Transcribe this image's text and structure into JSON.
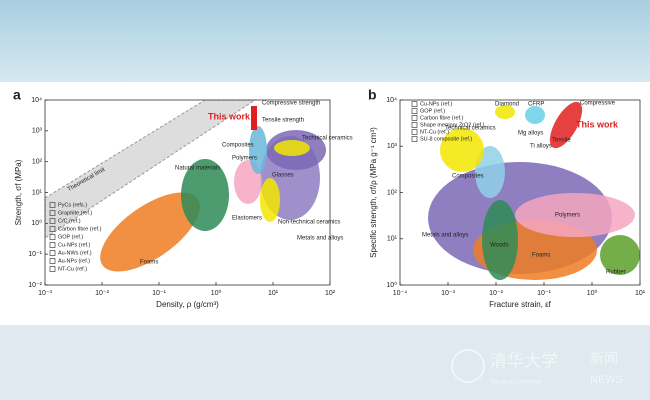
{
  "chart_data": [
    {
      "type": "scatter",
      "panel": "a",
      "xscale": "log",
      "yscale": "log",
      "xlabel": "Density, ρ (g/cm³)",
      "ylabel": "Strength, σf (MPa)",
      "xlim": [
        0.001,
        100
      ],
      "ylim": [
        0.01,
        10000
      ],
      "xticks": [
        {
          "value": 0.001,
          "label": "10⁻³"
        },
        {
          "value": 0.01,
          "label": "10⁻²"
        },
        {
          "value": 0.1,
          "label": "10⁻¹"
        },
        {
          "value": 1,
          "label": "10⁰"
        },
        {
          "value": 10,
          "label": "10¹"
        },
        {
          "value": 100,
          "label": "10²"
        }
      ],
      "yticks": [
        {
          "value": 0.01,
          "label": "10⁻²"
        },
        {
          "value": 0.1,
          "label": "10⁻¹"
        },
        {
          "value": 1,
          "label": "10⁰"
        },
        {
          "value": 10,
          "label": "10¹"
        },
        {
          "value": 100,
          "label": "10²"
        },
        {
          "value": 1000,
          "label": "10³"
        },
        {
          "value": 10000,
          "label": "10⁴"
        }
      ],
      "legend": [
        "PyCs (refs.)",
        "Graphite (ref.)",
        "C/C (ref.)",
        "Carbon fibre (ref.)",
        "GOP (ref.)",
        "Cu-NPs (ref.)",
        "Au-NWs (ref.)",
        "Au-NPs (ref.)",
        "NT-Cu (ref.)"
      ],
      "annotations": [
        "Theoretical limit",
        "This work",
        "Compressive strength",
        "Tensile strength",
        "Composites",
        "Polymers",
        "Natural materials",
        "Glasses",
        "Technical ceramics",
        "Elastomers",
        "Non-technical ceramics",
        "Metals and alloys",
        "Foams"
      ]
    },
    {
      "type": "scatter",
      "panel": "b",
      "xscale": "log",
      "yscale": "log",
      "xlabel": "Fracture strain, εf",
      "ylabel": "Specific strength, σf/ρ (MPa g⁻¹ cm³)",
      "xlim": [
        0.0001,
        10
      ],
      "ylim": [
        1,
        10000
      ],
      "xticks": [
        {
          "value": 0.0001,
          "label": "10⁻⁴"
        },
        {
          "value": 0.001,
          "label": "10⁻³"
        },
        {
          "value": 0.01,
          "label": "10⁻²"
        },
        {
          "value": 0.1,
          "label": "10⁻¹"
        },
        {
          "value": 1,
          "label": "10⁰"
        },
        {
          "value": 10,
          "label": "10¹"
        }
      ],
      "yticks": [
        {
          "value": 1,
          "label": "10⁰"
        },
        {
          "value": 10,
          "label": "10¹"
        },
        {
          "value": 100,
          "label": "10²"
        },
        {
          "value": 1000,
          "label": "10³"
        },
        {
          "value": 10000,
          "label": "10⁴"
        }
      ],
      "legend": [
        "Cu-NPs (ref.)",
        "GOP (ref.)",
        "Carbon fibre (ref.)",
        "Shape memory ZrO2 (ref.)",
        "NT-Cu (ref.)",
        "SU-8 composite (ref.)"
      ],
      "annotations": [
        "Diamond",
        "CFRP",
        "Compressive",
        "Tensile",
        "This work",
        "Mg alloys",
        "Ti alloys",
        "Technical ceramics",
        "Composites",
        "Polymers",
        "Metals and alloys",
        "Woods",
        "Foams",
        "Rubber"
      ]
    }
  ],
  "watermark": {
    "university": "清华大学",
    "subtitle": "Tsinghua University",
    "news": "新闻",
    "news_en": "NEWS"
  }
}
